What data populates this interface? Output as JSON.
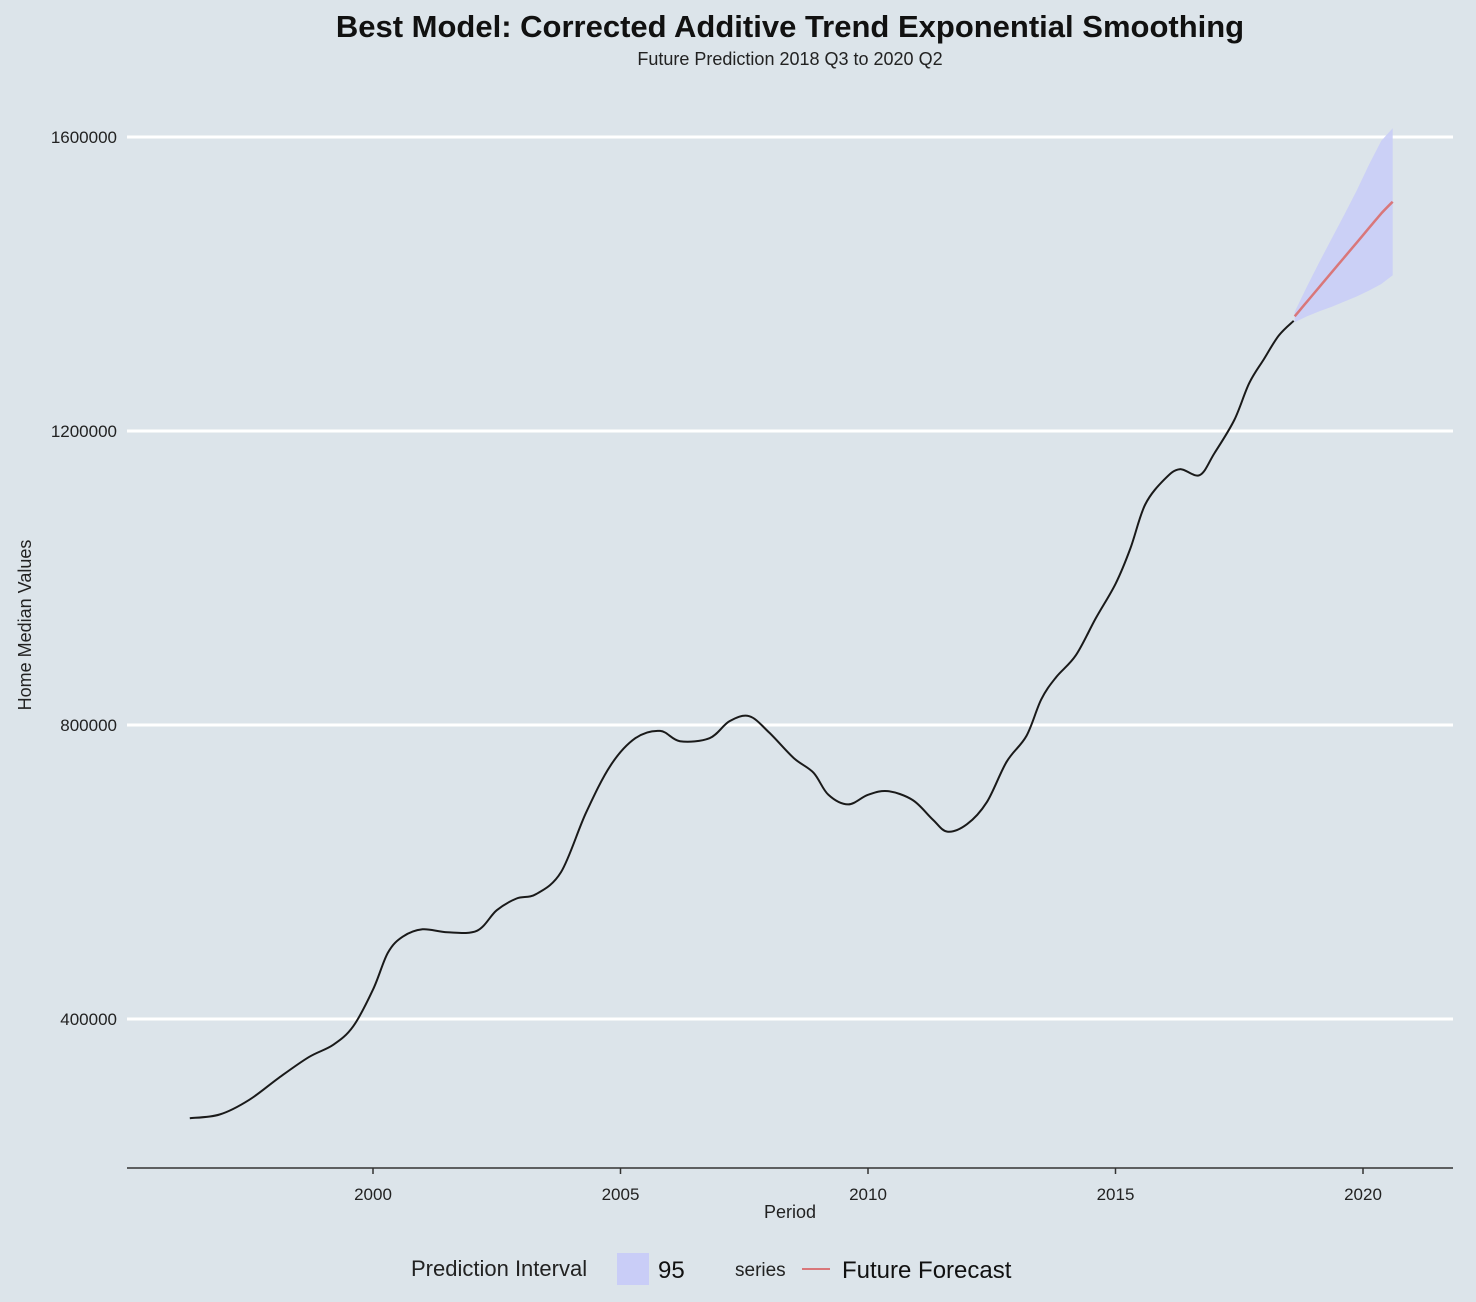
{
  "chart_data": {
    "type": "line",
    "title": "Best Model: Corrected Additive Trend Exponential Smoothing",
    "subtitle": "Future Prediction 2018 Q3 to 2020 Q2",
    "xlabel": "Period",
    "ylabel": "Home Median Values",
    "xlim": [
      1995,
      2021.8
    ],
    "ylim": [
      200000,
      1640000
    ],
    "x_ticks": [
      2000,
      2005,
      2010,
      2015,
      2020
    ],
    "y_ticks": [
      400000,
      800000,
      1200000,
      1600000
    ],
    "grid": "horizontal-major",
    "colors": {
      "background": "#dce4ea",
      "grid": "#ffffff",
      "history": "#1a1a1a",
      "forecast": "#d9777a",
      "interval": "#c9cdf7"
    },
    "history": {
      "x": [
        1996.3,
        1996.9,
        1997.5,
        1998.1,
        1998.7,
        1999.2,
        1999.6,
        2000.0,
        2000.3,
        2000.6,
        2001.0,
        2001.5,
        2002.1,
        2002.5,
        2002.9,
        2003.3,
        2003.8,
        2004.3,
        2004.8,
        2005.3,
        2005.8,
        2006.2,
        2006.8,
        2007.2,
        2007.6,
        2008.0,
        2008.5,
        2008.9,
        2009.2,
        2009.6,
        2010.0,
        2010.4,
        2010.9,
        2011.3,
        2011.6,
        2012.0,
        2012.4,
        2012.8,
        2013.2,
        2013.5,
        2013.8,
        2014.2,
        2014.6,
        2015.0,
        2015.3,
        2015.6,
        2016.0,
        2016.3,
        2016.7,
        2017.0,
        2017.4,
        2017.7,
        2018.0,
        2018.3,
        2018.6
      ],
      "y": [
        265000,
        270000,
        290000,
        320000,
        348000,
        365000,
        390000,
        440000,
        490000,
        512000,
        522000,
        518000,
        520000,
        548000,
        564000,
        570000,
        600000,
        680000,
        745000,
        782000,
        792000,
        778000,
        782000,
        805000,
        812000,
        790000,
        755000,
        735000,
        705000,
        692000,
        705000,
        710000,
        698000,
        672000,
        655000,
        665000,
        695000,
        750000,
        785000,
        835000,
        865000,
        895000,
        945000,
        992000,
        1040000,
        1100000,
        1135000,
        1148000,
        1140000,
        1170000,
        1215000,
        1265000,
        1298000,
        1330000,
        1350000
      ]
    },
    "series": [
      {
        "name": "Future Forecast",
        "x": [
          2018.62,
          2018.87,
          2019.12,
          2019.37,
          2019.62,
          2019.87,
          2020.12,
          2020.37,
          2020.6
        ],
        "y": [
          1356000,
          1376000,
          1396000,
          1416000,
          1436000,
          1456000,
          1476000,
          1496000,
          1512000
        ],
        "lower": [
          1348000,
          1356000,
          1363000,
          1369000,
          1376000,
          1383000,
          1391000,
          1400000,
          1412000
        ],
        "upper": [
          1362000,
          1397000,
          1430000,
          1462000,
          1494000,
          1527000,
          1562000,
          1595000,
          1612000
        ]
      }
    ],
    "legend": {
      "position": "bottom",
      "interval_title": "Prediction Interval",
      "interval_label": "95",
      "series_title": "series",
      "series_label": "Future Forecast"
    }
  }
}
